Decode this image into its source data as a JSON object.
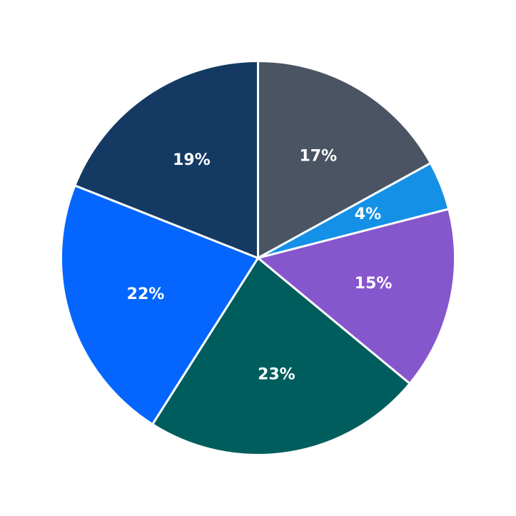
{
  "chart_data": {
    "type": "pie",
    "title": "",
    "start_angle_deg": 90,
    "direction": "clockwise",
    "slices": [
      {
        "value": 17,
        "label": "17%",
        "color": "#4a5462"
      },
      {
        "value": 4,
        "label": "4%",
        "color": "#1491e6"
      },
      {
        "value": 15,
        "label": "15%",
        "color": "#8656cd"
      },
      {
        "value": 23,
        "label": "23%",
        "color": "#005d5d"
      },
      {
        "value": 22,
        "label": "22%",
        "color": "#0466ff"
      },
      {
        "value": 19,
        "label": "19%",
        "color": "#143a63"
      }
    ]
  }
}
